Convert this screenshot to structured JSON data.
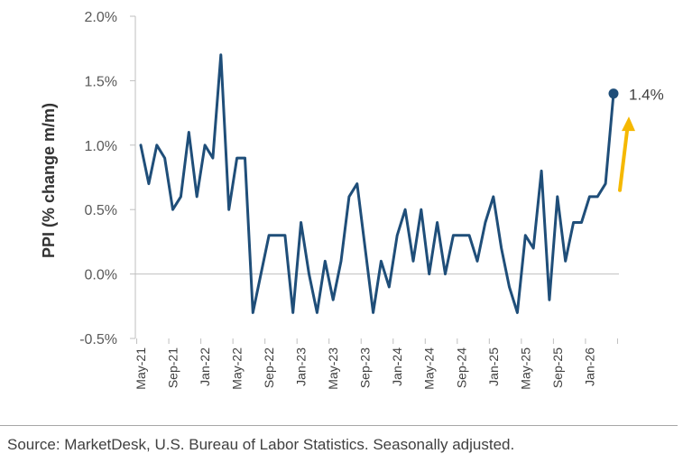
{
  "chart_data": {
    "type": "line",
    "title": "",
    "xlabel": "",
    "ylabel": "PPI (% change m/m)",
    "ylim": [
      -0.5,
      2.0
    ],
    "y_ticks": [
      -0.5,
      0.0,
      0.5,
      1.0,
      1.5,
      2.0
    ],
    "y_tick_labels": [
      "-0.5%",
      "0.0%",
      "0.5%",
      "1.0%",
      "1.5%",
      "2.0%"
    ],
    "x_tick_labels": [
      "May-21",
      "Sep-21",
      "Jan-22",
      "May-22",
      "Sep-22",
      "Jan-23",
      "May-23",
      "Sep-23",
      "Jan-24",
      "May-24",
      "Sep-24",
      "Jan-25",
      "May-25",
      "Sep-25",
      "Jan-26"
    ],
    "x_tick_every": 4,
    "grid": false,
    "legend": "none",
    "series": [
      {
        "color": "#1f4e79",
        "values": [
          1.0,
          0.7,
          1.0,
          0.9,
          0.5,
          0.6,
          1.1,
          0.6,
          1.0,
          0.9,
          1.7,
          0.5,
          0.9,
          0.9,
          -0.3,
          0.0,
          0.3,
          0.3,
          0.3,
          -0.3,
          0.4,
          0.0,
          -0.3,
          0.1,
          -0.2,
          0.1,
          0.6,
          0.7,
          0.2,
          -0.3,
          0.1,
          -0.1,
          0.3,
          0.5,
          0.1,
          0.5,
          0.0,
          0.4,
          0.0,
          0.3,
          0.3,
          0.3,
          0.1,
          0.4,
          0.6,
          0.2,
          -0.1,
          -0.3,
          0.3,
          0.2,
          0.8,
          -0.2,
          0.6,
          0.1,
          0.4,
          0.4,
          0.6,
          0.6,
          0.7,
          1.4
        ]
      }
    ],
    "end_label": "1.4%",
    "arrow_color": "#f5b800"
  },
  "footer": {
    "source": "Source: MarketDesk, U.S. Bureau of Labor Statistics. Seasonally adjusted."
  }
}
